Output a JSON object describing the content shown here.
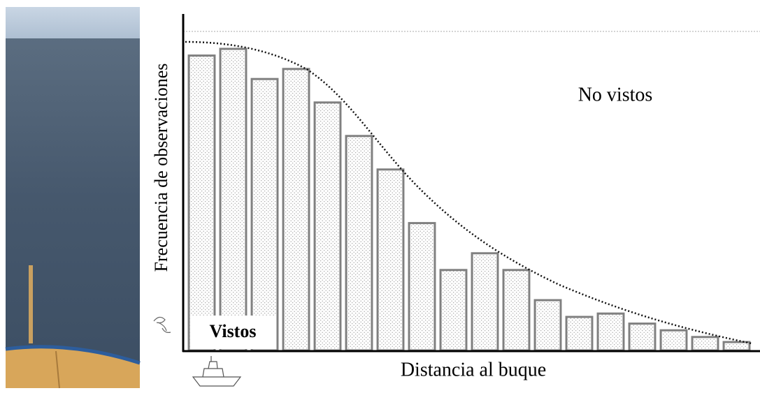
{
  "chart_data": {
    "type": "bar",
    "y_label": "Frecuencia de observaciones",
    "x_label": "Distancia al buque",
    "annotations": [
      "No vistos",
      "Vistos"
    ],
    "values": [
      88,
      90,
      81,
      84,
      74,
      64,
      54,
      38,
      24,
      29,
      24,
      15,
      10,
      11,
      8,
      6,
      4,
      2.5
    ],
    "color": "#808080",
    "ylim": [
      0,
      100
    ]
  }
}
